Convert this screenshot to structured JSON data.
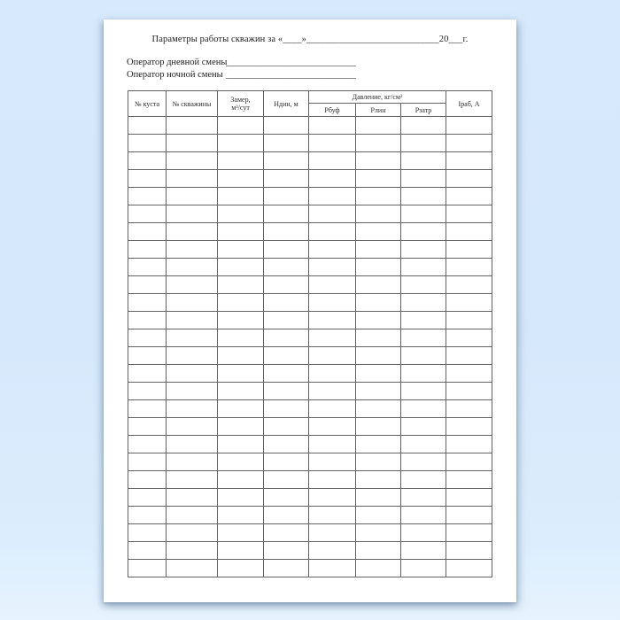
{
  "document": {
    "title": "Параметры работы скважин за «____»____________________________20___г.",
    "operators": [
      {
        "label": "Оператор дневной смены",
        "blank": "____________________________"
      },
      {
        "label": "Оператор ночной смены",
        "blank": "____________________________"
      }
    ],
    "table": {
      "header": {
        "col_kust": "№ куста",
        "col_well": "№ скважины",
        "col_zamer": "Замер,\nм³/сут",
        "col_ndin": "Ндин, м",
        "pressure_group": "Давление, кг/см²",
        "sub": [
          "Рбуф",
          "Рлин",
          "Рзатр"
        ],
        "col_irab": "Iраб, А"
      },
      "column_count": 8,
      "body_rows": 26
    }
  },
  "colors": {
    "page_background": "#ffffff",
    "desktop_background": "#d7e9fc",
    "table_border": "#636363",
    "text": "#222222"
  }
}
